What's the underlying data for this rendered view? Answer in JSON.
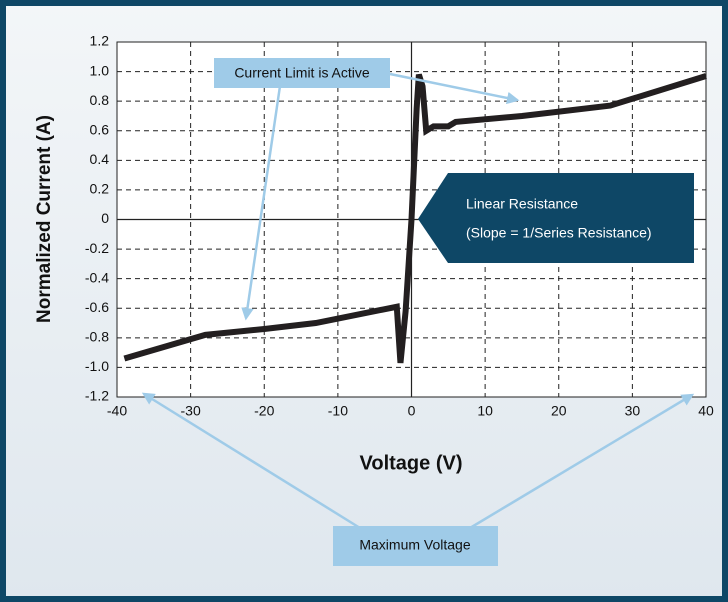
{
  "chart_data": {
    "type": "line",
    "xlabel": "Voltage (V)",
    "ylabel": "Normalized Current (A)",
    "x": [
      -39,
      -28,
      -20,
      -13,
      -2,
      -1.5,
      -0.8,
      0,
      0.7,
      1,
      1.5,
      2,
      3,
      5,
      6,
      15,
      27,
      40
    ],
    "values": [
      -0.94,
      -0.78,
      -0.74,
      -0.7,
      -0.59,
      -0.97,
      -0.62,
      0,
      0.75,
      0.98,
      0.9,
      0.6,
      0.63,
      0.63,
      0.66,
      0.7,
      0.77,
      0.97
    ],
    "color": "#231f20",
    "xlim": [
      -40,
      40
    ],
    "xticks": [
      -40,
      -30,
      -20,
      -10,
      0,
      10,
      20,
      30,
      40
    ],
    "ylim": [
      -1.2,
      1.2
    ],
    "yticks": [
      {
        "value": 1.2,
        "label": "1.2"
      },
      {
        "value": 1,
        "label": "1.0"
      },
      0.8,
      0.6,
      0.4,
      0.2,
      0,
      -0.2,
      -0.4,
      -0.6,
      -0.8,
      {
        "value": -1,
        "label": "-1.0"
      },
      -1.2
    ],
    "grid": true,
    "annotations": [
      "Current Limit is Active",
      "Linear Resistance",
      "(Slope = 1/Series Resistance)",
      "Maximum Voltage"
    ]
  }
}
